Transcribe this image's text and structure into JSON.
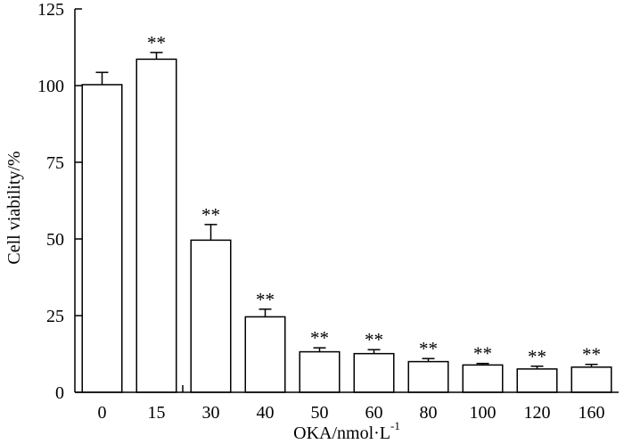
{
  "chart_data": {
    "type": "bar",
    "categories": [
      "0",
      "15",
      "30",
      "40",
      "50",
      "60",
      "80",
      "100",
      "120",
      "160"
    ],
    "values": [
      100.3,
      108.6,
      49.6,
      24.6,
      13.2,
      12.6,
      10.0,
      8.9,
      7.6,
      8.2
    ],
    "errors": [
      4.0,
      2.2,
      5.1,
      2.5,
      1.3,
      1.3,
      1.0,
      0.5,
      0.9,
      0.9
    ],
    "annotations": [
      "",
      "**",
      "**",
      "**",
      "**",
      "**",
      "**",
      "**",
      "**",
      "**"
    ],
    "ylim": [
      0,
      125
    ],
    "yticks": [
      "0",
      "25",
      "50",
      "75",
      "100",
      "125"
    ],
    "ylabel": "Cell viability/%",
    "xlabel": "OKA/nmol·L",
    "xlabel_sup": "-1",
    "grid": false,
    "legend": "none",
    "bar_fill": "#ffffff",
    "bar_stroke": "#000000"
  }
}
